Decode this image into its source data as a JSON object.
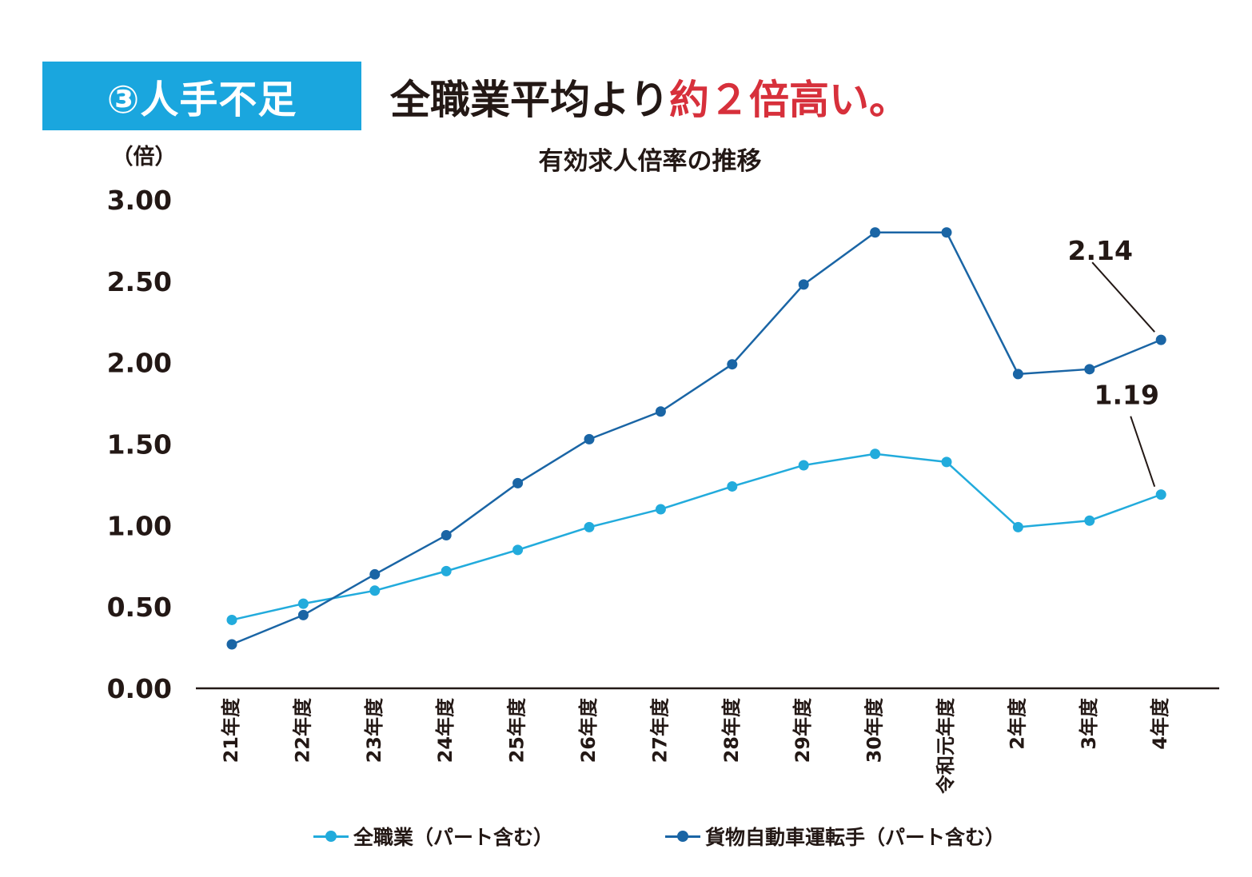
{
  "header": {
    "badge": "③人手不足",
    "headline_dark": "全職業平均より",
    "headline_red": "約２倍高い。"
  },
  "colors": {
    "badge_bg": "#1aa6de",
    "accent_red": "#d7303b",
    "series_all": "#22abdc",
    "series_truck": "#1a65a5",
    "text": "#231815"
  },
  "chart_data": {
    "type": "line",
    "title": "有効求人倍率の推移",
    "ylabel": "（倍）",
    "xlabel": "",
    "ylim": [
      0,
      3
    ],
    "yticks": [
      "0.00",
      "0.50",
      "1.00",
      "1.50",
      "2.00",
      "2.50",
      "3.00"
    ],
    "ytick_values": [
      0,
      0.5,
      1,
      1.5,
      2,
      2.5,
      3
    ],
    "categories": [
      "21年度",
      "22年度",
      "23年度",
      "24年度",
      "25年度",
      "26年度",
      "27年度",
      "28年度",
      "29年度",
      "30年度",
      "令和元年度",
      "2年度",
      "3年度",
      "4年度"
    ],
    "series": [
      {
        "name": "全職業（パート含む）",
        "color": "#22abdc",
        "values": [
          0.42,
          0.52,
          0.6,
          0.72,
          0.85,
          0.99,
          1.1,
          1.24,
          1.37,
          1.44,
          1.39,
          0.99,
          1.03,
          1.19
        ]
      },
      {
        "name": "貨物自動車運転手（パート含む）",
        "color": "#1a65a5",
        "values": [
          0.27,
          0.45,
          0.7,
          0.94,
          1.26,
          1.53,
          1.7,
          1.99,
          2.48,
          2.8,
          2.8,
          1.93,
          1.96,
          2.14
        ]
      }
    ],
    "annotations": [
      {
        "text": "2.14",
        "series": 1,
        "index": 13
      },
      {
        "text": "1.19",
        "series": 0,
        "index": 13
      }
    ],
    "legend_position": "bottom"
  }
}
